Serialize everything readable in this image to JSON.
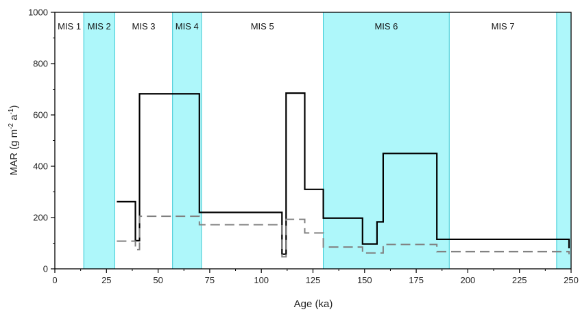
{
  "chart_data": {
    "type": "line",
    "xlabel": "Age (ka)",
    "ylabel": {
      "base": "MAR (g m",
      "sup1": "-2",
      "mid": " a",
      "sup2": "-1",
      "end": ")"
    },
    "xlim": [
      0,
      250
    ],
    "ylim": [
      0,
      1000
    ],
    "xticks": [
      0,
      25,
      50,
      75,
      100,
      125,
      150,
      175,
      200,
      225,
      250
    ],
    "yticks": [
      0,
      200,
      400,
      600,
      800,
      1000
    ],
    "grid": false,
    "legend": "none",
    "mis_bands": [
      {
        "label": "MIS 1",
        "start": 0,
        "end": 14,
        "shaded": false
      },
      {
        "label": "MIS 2",
        "start": 14,
        "end": 29,
        "shaded": true
      },
      {
        "label": "MIS 3",
        "start": 29,
        "end": 57,
        "shaded": false
      },
      {
        "label": "MIS 4",
        "start": 57,
        "end": 71,
        "shaded": true
      },
      {
        "label": "MIS 5",
        "start": 71,
        "end": 130,
        "shaded": false
      },
      {
        "label": "MIS 6",
        "start": 130,
        "end": 191,
        "shaded": true
      },
      {
        "label": "MIS 7",
        "start": 191,
        "end": 243,
        "shaded": false
      },
      {
        "label": "",
        "start": 243,
        "end": 250,
        "shaded": true
      }
    ],
    "series": [
      {
        "style": "solid",
        "color": "#000000",
        "points": [
          [
            30,
            262
          ],
          [
            39,
            262
          ],
          [
            39,
            110
          ],
          [
            41,
            110
          ],
          [
            41,
            682
          ],
          [
            70,
            682
          ],
          [
            70,
            220
          ],
          [
            110,
            220
          ],
          [
            110,
            57
          ],
          [
            112,
            57
          ],
          [
            112,
            685
          ],
          [
            121,
            685
          ],
          [
            121,
            310
          ],
          [
            130,
            310
          ],
          [
            130,
            198
          ],
          [
            149,
            198
          ],
          [
            149,
            97
          ],
          [
            156,
            97
          ],
          [
            156,
            183
          ],
          [
            159,
            183
          ],
          [
            159,
            450
          ],
          [
            185,
            450
          ],
          [
            185,
            115
          ],
          [
            249,
            115
          ],
          [
            249,
            80
          ]
        ]
      },
      {
        "style": "dashed",
        "color": "#808080",
        "points": [
          [
            30,
            108
          ],
          [
            39,
            108
          ],
          [
            39,
            75
          ],
          [
            41,
            75
          ],
          [
            41,
            205
          ],
          [
            70,
            205
          ],
          [
            70,
            172
          ],
          [
            110,
            172
          ],
          [
            110,
            47
          ],
          [
            112,
            47
          ],
          [
            112,
            193
          ],
          [
            121,
            193
          ],
          [
            121,
            140
          ],
          [
            130,
            140
          ],
          [
            130,
            85
          ],
          [
            149,
            85
          ],
          [
            149,
            62
          ],
          [
            159,
            62
          ],
          [
            159,
            95
          ],
          [
            185,
            95
          ],
          [
            185,
            67
          ],
          [
            249,
            67
          ],
          [
            249,
            57
          ]
        ]
      }
    ]
  },
  "colors": {
    "band_fill": "#aef7fa",
    "band_edge": "#35c9d4",
    "axis": "#000000"
  }
}
